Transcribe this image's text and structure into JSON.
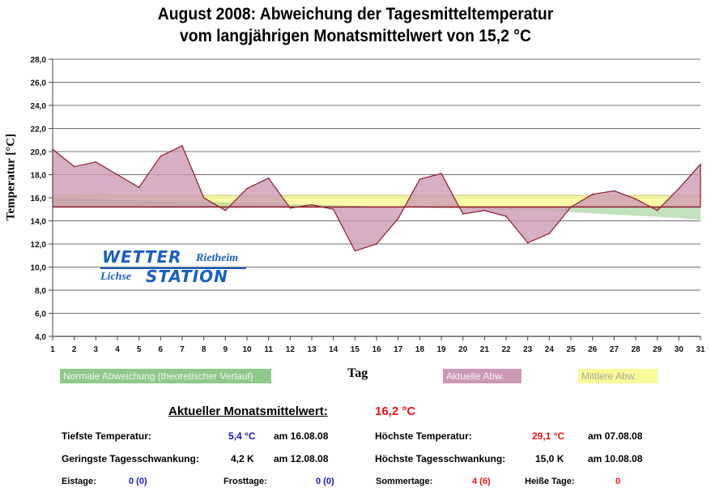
{
  "chart_data": {
    "type": "area",
    "title": "August 2008: Abweichung der Tagesmitteltemperatur",
    "subtitle": "vom langjährigen Monatsmittelwert von 15,2 °C",
    "xlabel": "Tag",
    "ylabel": "Temperatur [°C]",
    "x": [
      1,
      2,
      3,
      4,
      5,
      6,
      7,
      8,
      9,
      10,
      11,
      12,
      13,
      14,
      15,
      16,
      17,
      18,
      19,
      20,
      21,
      22,
      23,
      24,
      25,
      26,
      27,
      28,
      29,
      30,
      31
    ],
    "x_tick_labels": [
      "1",
      "2",
      "3",
      "4",
      "5",
      "6",
      "7",
      "8",
      "9",
      "10",
      "11",
      "12",
      "13",
      "14",
      "15",
      "16",
      "17",
      "18",
      "19",
      "20",
      "21",
      "22",
      "23",
      "24",
      "25",
      "26",
      "27",
      "28",
      "29",
      "30",
      "31"
    ],
    "ylim": [
      4.0,
      28.0
    ],
    "y_ticks": [
      4.0,
      6.0,
      8.0,
      10.0,
      12.0,
      14.0,
      16.0,
      18.0,
      20.0,
      22.0,
      24.0,
      26.0,
      28.0
    ],
    "y_tick_labels": [
      "4,0",
      "6,0",
      "8,0",
      "10,0",
      "12,0",
      "14,0",
      "16,0",
      "18,0",
      "20,0",
      "22,0",
      "24,0",
      "26,0",
      "28,0"
    ],
    "grid": true,
    "baseline": 15.2,
    "series": [
      {
        "name": "Normale Abweichung (theoretischer Verlauf)",
        "color": "#8fc98a",
        "values": [
          16.0,
          15.95,
          15.9,
          15.85,
          15.8,
          15.75,
          15.7,
          15.65,
          15.6,
          15.55,
          15.5,
          15.45,
          15.4,
          15.35,
          15.3,
          15.25,
          15.2,
          15.15,
          15.1,
          15.05,
          15.0,
          14.95,
          14.9,
          14.85,
          14.75,
          14.65,
          14.55,
          14.45,
          14.35,
          14.25,
          14.1
        ]
      },
      {
        "name": "Aktuelle Abw.",
        "color": "#cc99b4",
        "line_color": "#8b1a2a",
        "values": [
          20.2,
          18.7,
          19.1,
          18.0,
          16.9,
          19.6,
          20.5,
          16.0,
          14.9,
          16.8,
          17.7,
          15.1,
          15.4,
          15.0,
          11.4,
          12.0,
          14.2,
          17.6,
          18.1,
          14.6,
          14.9,
          14.4,
          12.1,
          12.9,
          15.2,
          16.3,
          16.6,
          15.9,
          14.9,
          16.8,
          18.9
        ]
      },
      {
        "name": "Mittlere Abw.",
        "color": "#fbf99a",
        "values": [
          16.2,
          16.2,
          16.2,
          16.2,
          16.2,
          16.2,
          16.2,
          16.2,
          16.2,
          16.2,
          16.2,
          16.2,
          16.2,
          16.2,
          16.2,
          16.2,
          16.2,
          16.2,
          16.2,
          16.2,
          16.2,
          16.2,
          16.2,
          16.2,
          16.2,
          16.2,
          16.2,
          16.2,
          16.2,
          16.2,
          16.2
        ]
      }
    ],
    "legend": "bottom"
  },
  "logo": {
    "line1": "WETTER",
    "line1_suffix": "Rietheim",
    "line2_prefix": "Lichse",
    "line2": "STATION"
  },
  "summary": {
    "monthly_mean_label": "Aktueller Monatsmittelwert:",
    "monthly_mean_value": "16,2 °C",
    "min_temp_label": "Tiefste Temperatur:",
    "min_temp_value": "5,4 °C",
    "min_temp_date": "am 16.08.08",
    "max_temp_label": "Höchste Temperatur:",
    "max_temp_value": "29,1 °C",
    "max_temp_date": "am 07.08.08",
    "min_range_label": "Geringste Tagesschwankung:",
    "min_range_value": "4,2 K",
    "min_range_date": "am 12.08.08",
    "max_range_label": "Höchste Tagesschwankung:",
    "max_range_value": "15,0 K",
    "max_range_date": "am 10.08.08",
    "ice_days_label": "Eistage:",
    "ice_days_value": "0 (0)",
    "frost_days_label": "Frosttage:",
    "frost_days_value": "0 (0)",
    "summer_days_label": "Sommertage:",
    "summer_days_value": "4 (6)",
    "hot_days_label": "Heiße Tage:",
    "hot_days_value": "0"
  }
}
